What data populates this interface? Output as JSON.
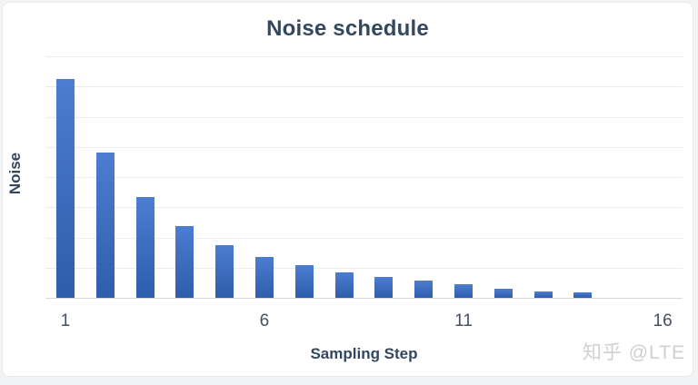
{
  "chart_data": {
    "type": "bar",
    "title": "Noise schedule",
    "xlabel": "Sampling Step",
    "ylabel": "Noise",
    "categories": [
      1,
      2,
      3,
      4,
      5,
      6,
      7,
      8,
      9,
      10,
      11,
      12,
      13,
      14,
      15,
      16
    ],
    "values": [
      7.25,
      4.8,
      3.33,
      2.38,
      1.75,
      1.36,
      1.07,
      0.84,
      0.69,
      0.57,
      0.46,
      0.3,
      0.22,
      0.18,
      0,
      0
    ],
    "ylim": [
      0,
      8
    ],
    "y_tick_labels_shown": false,
    "gridline_intervals": 8,
    "grid": "horizontal",
    "legend": "none",
    "x_ticks": [
      {
        "label": "1",
        "position": 1
      },
      {
        "label": "6",
        "position": 6
      },
      {
        "label": "11",
        "position": 11
      },
      {
        "label": "16",
        "position": 16
      }
    ]
  },
  "watermark": {
    "text": "知乎 @LTE"
  },
  "colors": {
    "title_text": "#33475e",
    "axis_label_text": "#33475e",
    "tick_text": "#465063",
    "bar_gradient_top": "#4d7dd0",
    "bar_gradient_bottom": "#2e5dac",
    "gridline": "#ececec",
    "baseline": "#d7d9dd",
    "watermark_text": "#d0d0d0",
    "card_background": "#ffffff",
    "page_background": "#f2f3f5",
    "card_border": "#e7e9ec"
  }
}
